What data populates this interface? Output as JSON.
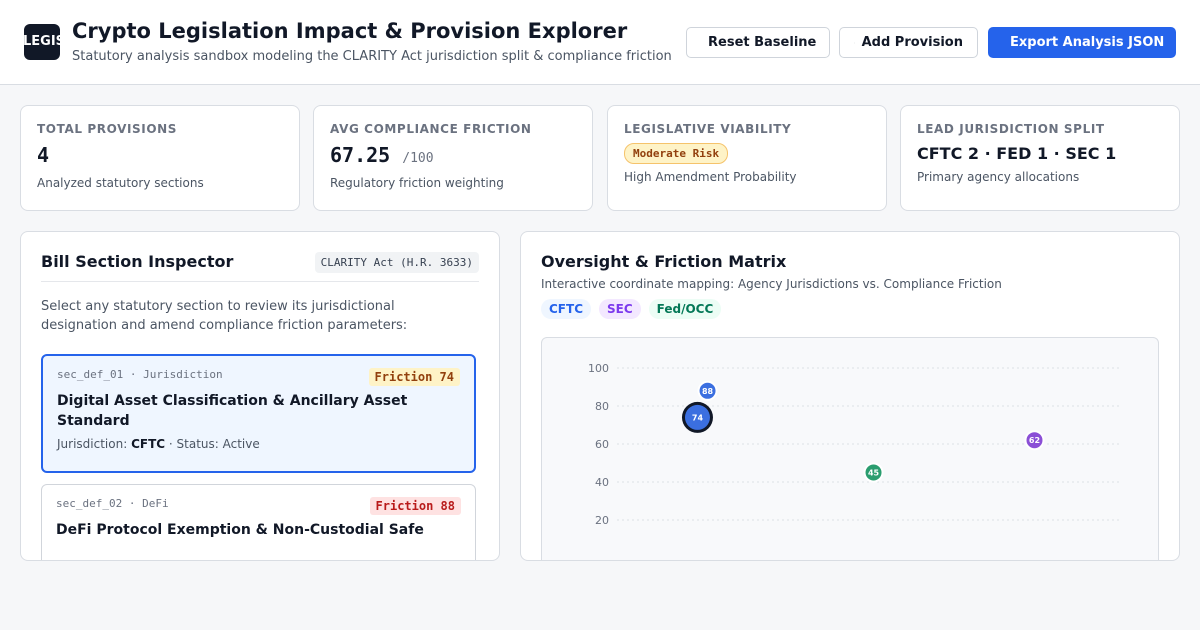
{
  "app": {
    "logo_text": "LEGIS",
    "title": "Crypto Legislation Impact & Provision Explorer",
    "subtitle": "Statutory analysis sandbox modeling the CLARITY Act jurisdiction split & compliance friction"
  },
  "toolbar": {
    "reset_label": "Reset Baseline",
    "add_label": "Add Provision",
    "export_label": "Export Analysis JSON"
  },
  "stats": {
    "total": {
      "label": "TOTAL PROVISIONS",
      "value": "4",
      "desc": "Analyzed statutory sections"
    },
    "friction": {
      "label": "AVG COMPLIANCE FRICTION",
      "value": "67.25",
      "suffix": "/100",
      "desc": "Regulatory friction weighting"
    },
    "viability": {
      "label": "LEGISLATIVE VIABILITY",
      "badge": "Moderate Risk",
      "desc": "High Amendment Probability"
    },
    "split": {
      "label": "LEAD JURISDICTION SPLIT",
      "value": "CFTC 2 · FED 1 · SEC 1",
      "desc": "Primary agency allocations"
    }
  },
  "inspector": {
    "title": "Bill Section Inspector",
    "bill_tag": "CLARITY Act (H.R. 3633)",
    "intro": "Select any statutory section to review its jurisdictional designation and amend compliance friction parameters:",
    "jurisdiction_prefix": "Jurisdiction:",
    "sections": [
      {
        "id": "sec_def_01 · Jurisdiction",
        "friction": "Friction 74",
        "title": "Digital Asset Classification & Ancillary Asset Standard",
        "jurisdiction": "CFTC",
        "status": "· Status: Active"
      },
      {
        "id": "sec_def_02 · DeFi",
        "friction": "Friction 88",
        "title": "DeFi Protocol Exemption & Non-Custodial Safe"
      }
    ]
  },
  "matrix": {
    "title": "Oversight & Friction Matrix",
    "subtitle": "Interactive coordinate mapping: Agency Jurisdictions vs. Compliance Friction",
    "legend": [
      "CFTC",
      "SEC",
      "Fed/OCC"
    ],
    "colors": {
      "CFTC": "#3b6fe0",
      "SEC": "#8b4fd6",
      "Fed/OCC": "#2a9d6f"
    }
  },
  "chart_data": {
    "type": "scatter",
    "y_ticks": [
      100,
      80,
      60,
      40,
      20
    ],
    "ylim": [
      0,
      100
    ],
    "xlim": [
      0,
      1
    ],
    "grid": true,
    "points": [
      {
        "label": "88",
        "x": 0.18,
        "y": 88,
        "agency": "CFTC",
        "selected": false
      },
      {
        "label": "74",
        "x": 0.16,
        "y": 74,
        "agency": "CFTC",
        "selected": true
      },
      {
        "label": "62",
        "x": 0.83,
        "y": 62,
        "agency": "SEC",
        "selected": false
      },
      {
        "label": "45",
        "x": 0.51,
        "y": 45,
        "agency": "Fed/OCC",
        "selected": false
      }
    ]
  }
}
